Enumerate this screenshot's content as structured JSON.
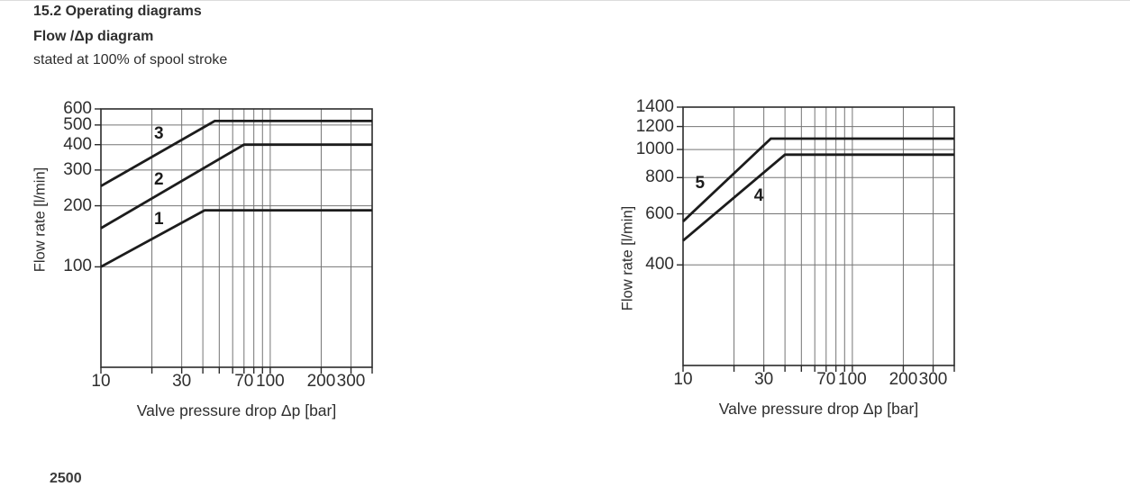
{
  "page": {
    "section_title": "15.2 Operating diagrams",
    "diagram_title": "Flow /Δp diagram",
    "diagram_subtitle": "stated at 100% of spool stroke",
    "footer_partial": "2500"
  },
  "colors": {
    "background": "#ffffff",
    "text": "#2e2e2e",
    "gridline": "#757575",
    "frame": "#2b2b2b",
    "curve": "#1c1c1c"
  },
  "chart_data": [
    {
      "id": "flow-dp-left",
      "type": "line",
      "title": "",
      "x_axis": {
        "label": "Valve pressure drop Δp [bar]",
        "scale": "log",
        "min": 10,
        "max": 400,
        "gridlines": [
          20,
          30,
          40,
          50,
          60,
          70,
          80,
          90,
          100,
          200,
          300
        ],
        "ticks": [
          10,
          30,
          70,
          100,
          200,
          300
        ]
      },
      "y_axis": {
        "label": "Flow rate [l/min]",
        "scale": "log",
        "min": 32,
        "max": 600,
        "gridlines": [
          100,
          200,
          300,
          400,
          500,
          600
        ],
        "ticks": [
          100,
          200,
          300,
          400,
          500,
          600
        ]
      },
      "series": [
        {
          "name": "1",
          "points": [
            [
              10,
              100
            ],
            [
              41,
              190
            ],
            [
              400,
              190
            ]
          ],
          "label_at": [
            22,
            170
          ]
        },
        {
          "name": "2",
          "points": [
            [
              10,
              155
            ],
            [
              70,
              400
            ],
            [
              400,
              400
            ]
          ],
          "label_at": [
            22,
            268
          ]
        },
        {
          "name": "3",
          "points": [
            [
              10,
              250
            ],
            [
              47,
              523
            ],
            [
              400,
              523
            ]
          ],
          "label_at": [
            22,
            452
          ]
        }
      ]
    },
    {
      "id": "flow-dp-right",
      "type": "line",
      "title": "",
      "x_axis": {
        "label": "Valve pressure drop Δp [bar]",
        "scale": "log",
        "min": 10,
        "max": 400,
        "gridlines": [
          20,
          30,
          40,
          50,
          60,
          70,
          80,
          90,
          100,
          200,
          300
        ],
        "ticks": [
          10,
          30,
          70,
          100,
          200,
          300
        ]
      },
      "y_axis": {
        "label": "Flow rate [l/min]",
        "scale": "log",
        "min": 180,
        "max": 1400,
        "gridlines": [
          400,
          600,
          800,
          1000,
          1200,
          1400
        ],
        "ticks": [
          400,
          600,
          800,
          1000,
          1200,
          1400
        ]
      },
      "series": [
        {
          "name": "4",
          "points": [
            [
              10,
              485
            ],
            [
              40,
              960
            ],
            [
              400,
              960
            ]
          ],
          "label_at": [
            28,
            690
          ]
        },
        {
          "name": "5",
          "points": [
            [
              10,
              565
            ],
            [
              33,
              1090
            ],
            [
              400,
              1090
            ]
          ],
          "label_at": [
            12.6,
            760
          ]
        }
      ]
    }
  ]
}
